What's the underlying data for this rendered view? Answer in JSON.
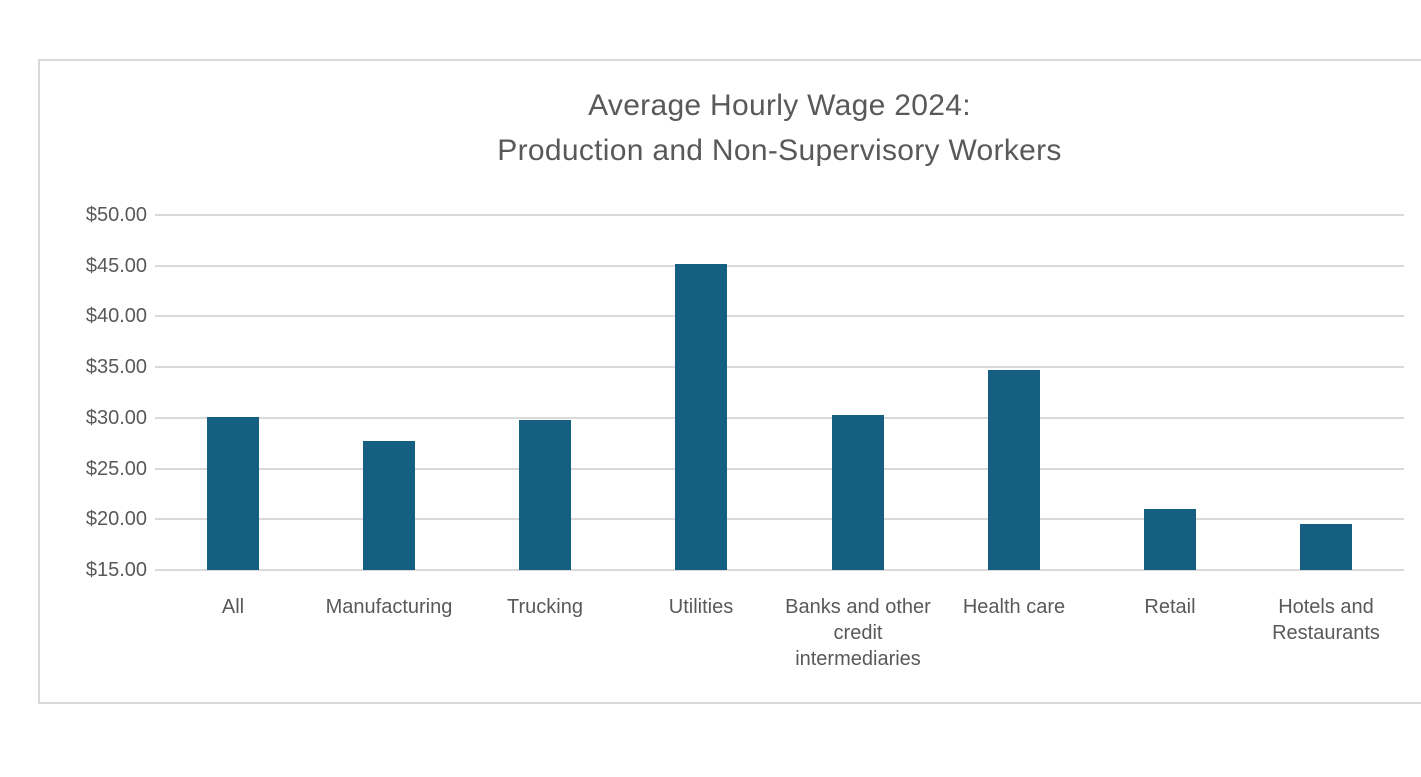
{
  "chart": {
    "title_line1": "Average Hourly Wage 2024:",
    "title_line2": "Production and Non-Supervisory Workers"
  },
  "chart_data": {
    "type": "bar",
    "title": "Average Hourly Wage 2024: Production and Non-Supervisory Workers",
    "categories": [
      "All",
      "Manufacturing",
      "Trucking",
      "Utilities",
      "Banks and other credit intermediaries",
      "Health care",
      "Retail",
      "Hotels and Restaurants"
    ],
    "values": [
      30.1,
      27.7,
      29.8,
      45.2,
      30.3,
      34.7,
      21.0,
      19.5
    ],
    "xlabel": "",
    "ylabel": "",
    "ylim": [
      15,
      50
    ],
    "y_tick_step": 5,
    "y_tick_labels": [
      "$50.00",
      "$45.00",
      "$40.00",
      "$35.00",
      "$30.00",
      "$25.00",
      "$20.00",
      "$15.00"
    ],
    "grid": true,
    "legend": false,
    "bar_color": "#156082",
    "gridline_color": "#D9D9D9",
    "text_color": "#595959",
    "frame_border_color": "#D9D9D9",
    "background": "#FFFFFF"
  }
}
